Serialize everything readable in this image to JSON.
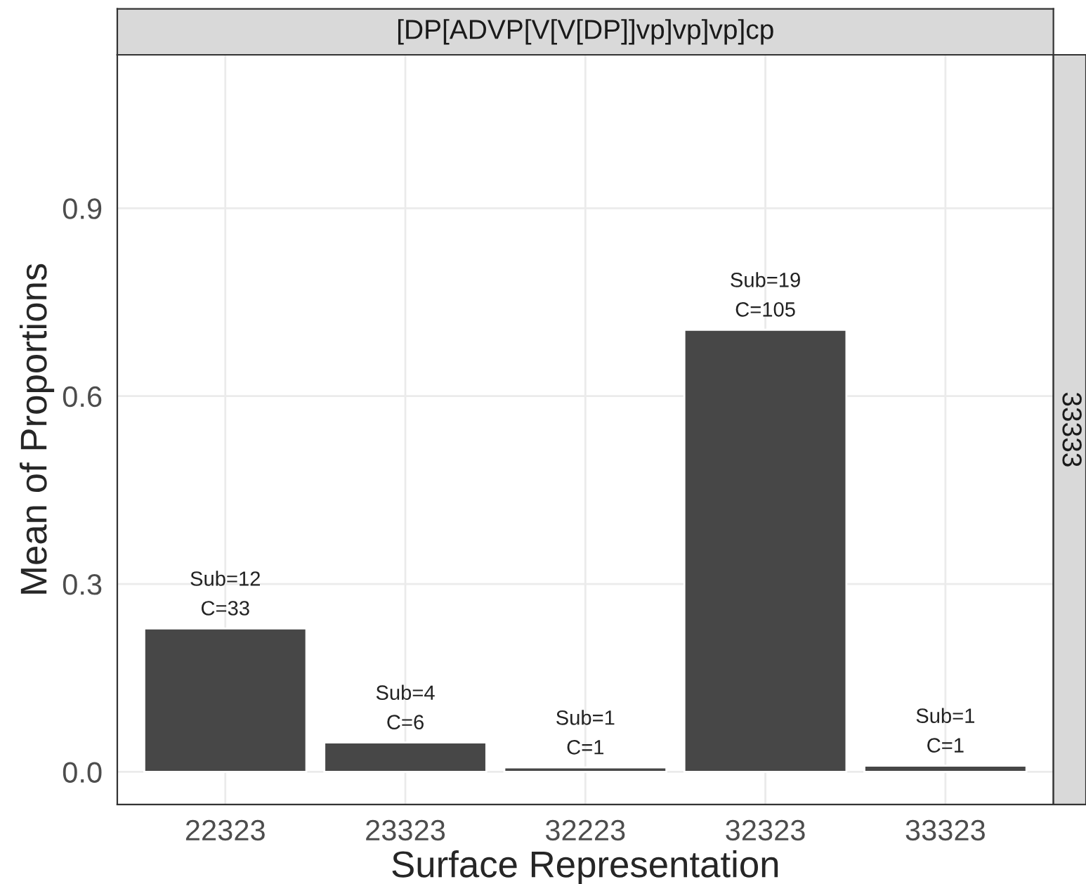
{
  "chart_data": {
    "type": "bar",
    "title": "[DP[ADVP[V[V[DP]]vp]vp]vp]cp",
    "xlabel": "Surface Representation",
    "ylabel": "Mean of Proportions",
    "annotations": [
      "33333"
    ],
    "categories": [
      "22323",
      "23323",
      "32223",
      "32323",
      "33323"
    ],
    "values": [
      0.229,
      0.047,
      0.007,
      0.706,
      0.01
    ],
    "value_labels": [
      "Sub=12\nC=33",
      "Sub=4\nC=6",
      "Sub=1\nC=1",
      "Sub=19\nC=105",
      "Sub=1\nC=1"
    ],
    "color": "#474747",
    "ylim": [
      -0.052,
      1.145
    ],
    "yticks": [
      {
        "value": 0.0,
        "label": "0.0"
      },
      {
        "value": 0.3,
        "label": "0.3"
      },
      {
        "value": 0.6,
        "label": "0.6"
      },
      {
        "value": 0.9,
        "label": "0.9"
      }
    ],
    "grid": true
  }
}
